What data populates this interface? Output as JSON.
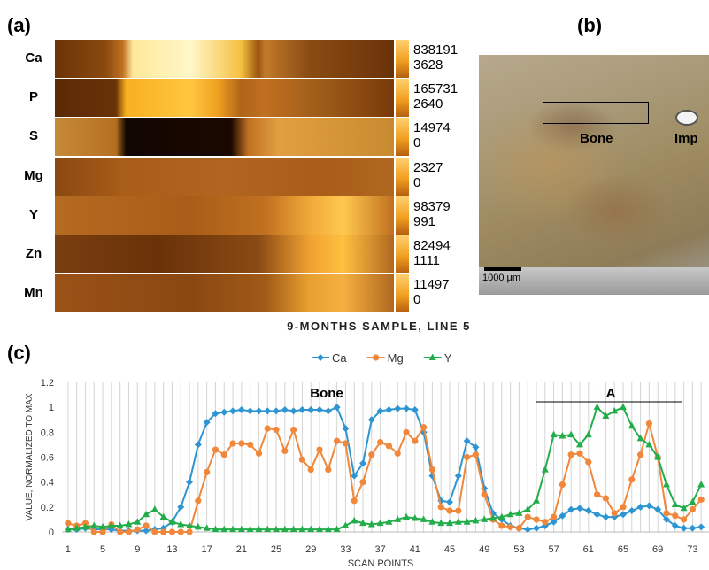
{
  "panels": {
    "a": "(a)",
    "b": "(b)",
    "c": "(c)"
  },
  "element_maps": [
    {
      "element": "Ca",
      "max": 838191,
      "min": 3628
    },
    {
      "element": "P",
      "max": 165731,
      "min": 2640
    },
    {
      "element": "S",
      "max": 14974,
      "min": 0
    },
    {
      "element": "Mg",
      "max": 2327,
      "min": 0
    },
    {
      "element": "Y",
      "max": 98379,
      "min": 991
    },
    {
      "element": "Zn",
      "max": 82494,
      "min": 1111
    },
    {
      "element": "Mn",
      "max": 11497,
      "min": 0
    }
  ],
  "photo": {
    "labels": [
      "Bone",
      "Imp"
    ],
    "scale_bar": "1000 µm"
  },
  "chart_data": {
    "type": "line",
    "title": "9-MONTHS SAMPLE, LINE 5",
    "x_label": "SCAN POINTS",
    "y_label": "VALUE, NORMALIZED TO MAX",
    "annotations": [
      "Bone",
      "A"
    ],
    "x": [
      1,
      2,
      3,
      4,
      5,
      6,
      7,
      8,
      9,
      10,
      11,
      12,
      13,
      14,
      15,
      16,
      17,
      18,
      19,
      20,
      21,
      22,
      23,
      24,
      25,
      26,
      27,
      28,
      29,
      30,
      31,
      32,
      33,
      34,
      35,
      36,
      37,
      38,
      39,
      40,
      41,
      42,
      43,
      44,
      45,
      46,
      47,
      48,
      49,
      50,
      51,
      52,
      53,
      54,
      55,
      56,
      57,
      58,
      59,
      60,
      61,
      62,
      63,
      64,
      65,
      66,
      67,
      68,
      69,
      70,
      71,
      72,
      73,
      74
    ],
    "series": [
      {
        "name": "Ca",
        "color": "#2e95d3",
        "marker": "diamond",
        "values": [
          0.02,
          0.02,
          0.03,
          0.02,
          0.02,
          0.02,
          0.01,
          0.01,
          0.01,
          0.01,
          0.02,
          0.03,
          0.08,
          0.2,
          0.4,
          0.7,
          0.88,
          0.95,
          0.96,
          0.97,
          0.98,
          0.97,
          0.97,
          0.97,
          0.97,
          0.98,
          0.97,
          0.98,
          0.98,
          0.98,
          0.97,
          1.0,
          0.83,
          0.45,
          0.55,
          0.9,
          0.97,
          0.98,
          0.99,
          0.99,
          0.98,
          0.8,
          0.45,
          0.25,
          0.24,
          0.45,
          0.73,
          0.68,
          0.35,
          0.15,
          0.1,
          0.05,
          0.03,
          0.02,
          0.03,
          0.05,
          0.08,
          0.13,
          0.18,
          0.19,
          0.17,
          0.14,
          0.12,
          0.12,
          0.14,
          0.17,
          0.2,
          0.21,
          0.18,
          0.1,
          0.05,
          0.03,
          0.03,
          0.04
        ]
      },
      {
        "name": "Mg",
        "color": "#f0873a",
        "marker": "circle",
        "values": [
          0.07,
          0.05,
          0.07,
          0,
          0,
          0.06,
          0,
          0,
          0.02,
          0.05,
          0,
          0,
          0,
          0,
          0,
          0.25,
          0.48,
          0.66,
          0.62,
          0.71,
          0.71,
          0.7,
          0.63,
          0.83,
          0.82,
          0.65,
          0.82,
          0.58,
          0.5,
          0.66,
          0.5,
          0.73,
          0.71,
          0.25,
          0.4,
          0.62,
          0.72,
          0.69,
          0.63,
          0.8,
          0.73,
          0.84,
          0.5,
          0.2,
          0.17,
          0.17,
          0.6,
          0.62,
          0.3,
          0.1,
          0.05,
          0.04,
          0.03,
          0.12,
          0.1,
          0.08,
          0.12,
          0.38,
          0.62,
          0.63,
          0.56,
          0.3,
          0.27,
          0.15,
          0.2,
          0.42,
          0.62,
          0.87,
          0.6,
          0.15,
          0.13,
          0.1,
          0.18,
          0.26
        ]
      },
      {
        "name": "Y",
        "color": "#22ad4a",
        "marker": "triangle",
        "values": [
          0.02,
          0.03,
          0.04,
          0.05,
          0.04,
          0.05,
          0.05,
          0.06,
          0.08,
          0.14,
          0.18,
          0.12,
          0.08,
          0.06,
          0.05,
          0.04,
          0.03,
          0.02,
          0.02,
          0.02,
          0.02,
          0.02,
          0.02,
          0.02,
          0.02,
          0.02,
          0.02,
          0.02,
          0.02,
          0.02,
          0.02,
          0.02,
          0.05,
          0.09,
          0.07,
          0.06,
          0.07,
          0.08,
          0.1,
          0.12,
          0.11,
          0.1,
          0.08,
          0.07,
          0.07,
          0.08,
          0.08,
          0.09,
          0.1,
          0.11,
          0.12,
          0.14,
          0.15,
          0.18,
          0.25,
          0.5,
          0.78,
          0.77,
          0.78,
          0.7,
          0.78,
          1.0,
          0.93,
          0.97,
          1.0,
          0.85,
          0.75,
          0.7,
          0.6,
          0.38,
          0.22,
          0.19,
          0.24,
          0.38
        ]
      }
    ],
    "xlim": [
      0.3,
      74.9
    ],
    "xticks": [
      1,
      5,
      9,
      13,
      17,
      21,
      25,
      29,
      33,
      37,
      41,
      45,
      49,
      53,
      57,
      61,
      65,
      69,
      73
    ],
    "ylim": [
      0,
      1.2
    ],
    "yticks": [
      0,
      0.2,
      0.4,
      0.6,
      0.8,
      1,
      1.2
    ],
    "grid": "x",
    "legend": "top"
  }
}
